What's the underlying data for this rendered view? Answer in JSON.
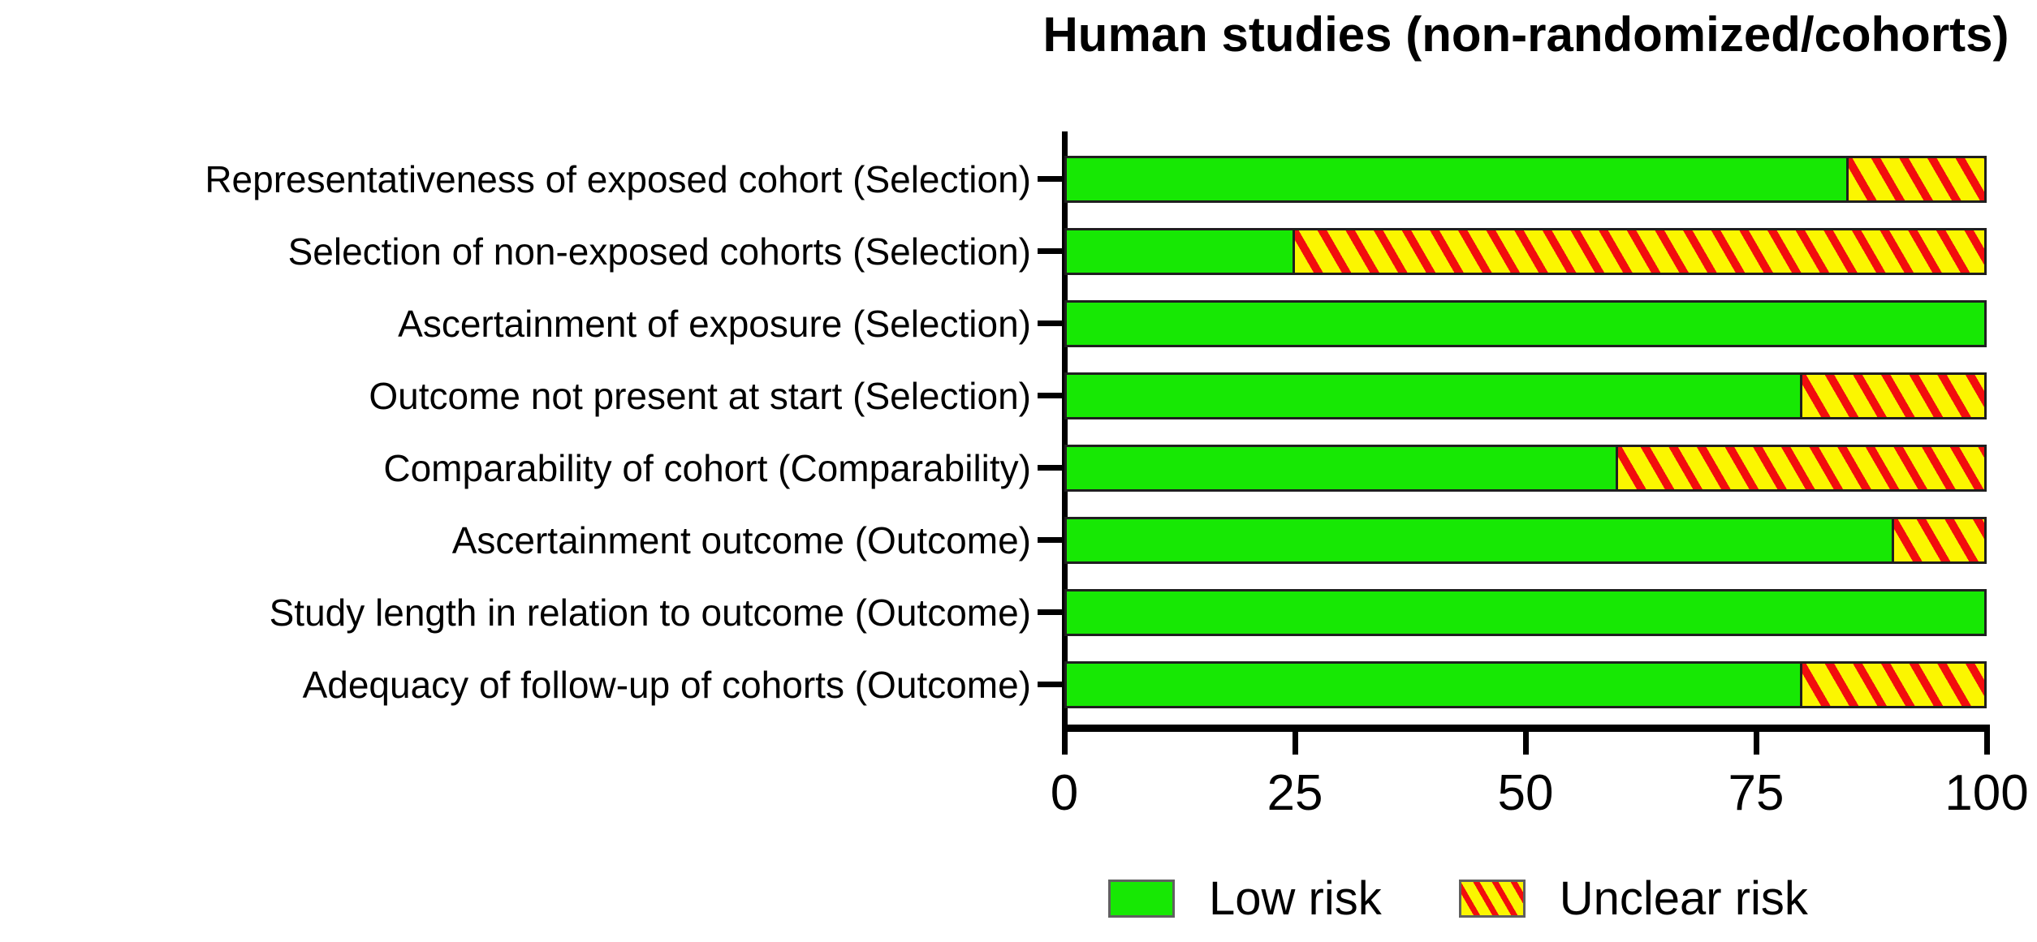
{
  "chart_data": {
    "type": "bar",
    "orientation": "horizontal",
    "stacked": true,
    "title": "Human studies (non-randomized/cohorts)",
    "categories": [
      "Representativeness of exposed cohort (Selection)",
      "Selection of non-exposed cohorts (Selection)",
      "Ascertainment of exposure (Selection)",
      "Outcome not present at start (Selection)",
      "Comparability of cohort (Comparability)",
      "Ascertainment outcome (Outcome)",
      "Study length in relation to outcome (Outcome)",
      "Adequacy of follow-up of cohorts (Outcome)"
    ],
    "series": [
      {
        "name": "Low risk",
        "style": "solid",
        "color": "#17E804",
        "values": [
          85,
          25,
          100,
          80,
          60,
          90,
          100,
          80
        ]
      },
      {
        "name": "Unclear risk",
        "style": "hatched-diagonal",
        "background": "#FBF600",
        "stripe": "#F20D0D",
        "values": [
          15,
          75,
          0,
          20,
          40,
          10,
          0,
          20
        ]
      }
    ],
    "xlabel": "",
    "ylabel": "",
    "xlim": [
      0,
      100
    ],
    "xticks": [
      0,
      25,
      50,
      75,
      100
    ],
    "units": "percent of studies",
    "grid": false,
    "legend_position": "bottom"
  },
  "colors": {
    "low_risk_green": "#17E804",
    "unclear_yellow": "#FBF600",
    "unclear_red_stripe": "#F20D0D",
    "axis": "#000000",
    "bar_border": "#1F1F1F",
    "legend_swatch_border": "#606060",
    "background": "#FFFFFF",
    "text": "#000000"
  }
}
